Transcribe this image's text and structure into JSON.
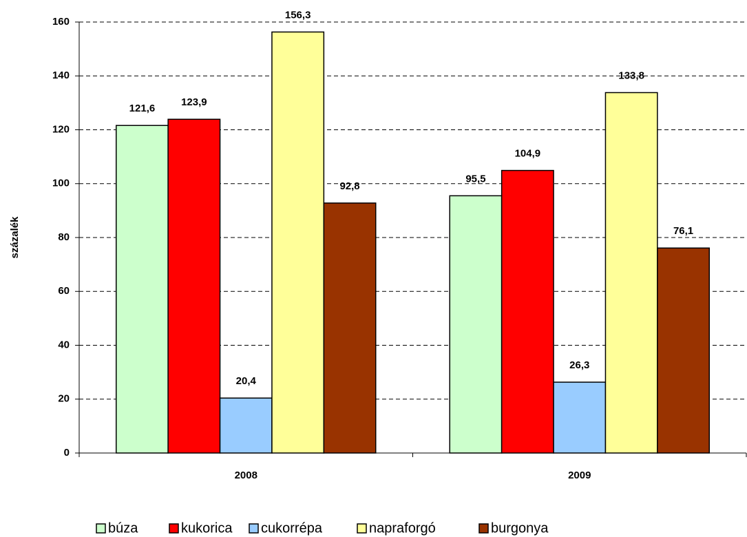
{
  "chart_data": {
    "type": "bar",
    "y_label": "százalék",
    "categories": [
      "2008",
      "2009"
    ],
    "series": [
      {
        "name": "búza",
        "color": "#ccffcc",
        "values": [
          121.6,
          95.5
        ],
        "value_labels": [
          "121,6",
          "95,5"
        ]
      },
      {
        "name": "kukorica",
        "color": "#ff0000",
        "values": [
          123.9,
          104.9
        ],
        "value_labels": [
          "123,9",
          "104,9"
        ]
      },
      {
        "name": "cukorrépa",
        "color": "#99ccff",
        "values": [
          20.4,
          26.3
        ],
        "value_labels": [
          "20,4",
          "26,3"
        ]
      },
      {
        "name": "napraforgó",
        "color": "#ffff99",
        "values": [
          156.3,
          133.8
        ],
        "value_labels": [
          "156,3",
          "133,8"
        ]
      },
      {
        "name": "burgonya",
        "color": "#993300",
        "values": [
          92.8,
          76.1
        ],
        "value_labels": [
          "92,8",
          "76,1"
        ]
      }
    ],
    "ylim": [
      0,
      160
    ],
    "yticks": [
      0,
      20,
      40,
      60,
      80,
      100,
      120,
      140,
      160
    ],
    "grid": true,
    "legend": "bottom"
  }
}
